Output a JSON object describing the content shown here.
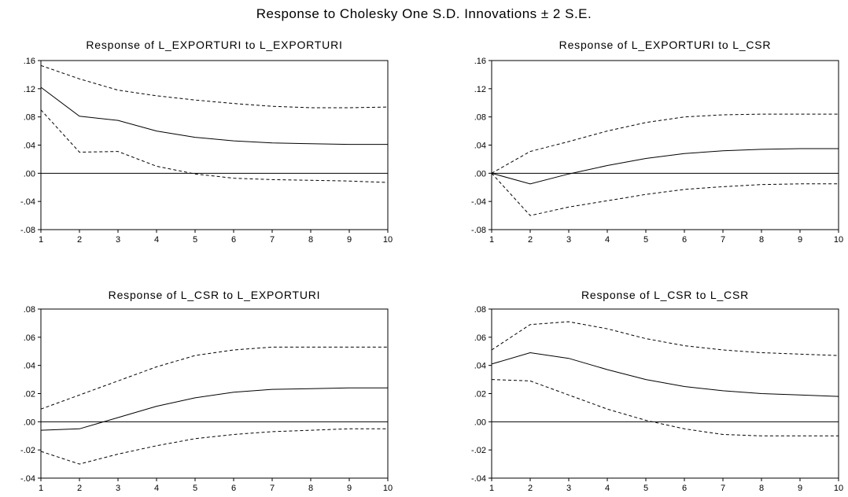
{
  "figure": {
    "title": "Response to Cholesky One S.D. Innovations ± 2 S.E."
  },
  "chart_data": [
    {
      "type": "line",
      "title": "Response of L_EXPORTURI to L_EXPORTURI",
      "x": [
        1,
        2,
        3,
        4,
        5,
        6,
        7,
        8,
        9,
        10
      ],
      "xticks": [
        "1",
        "2",
        "3",
        "4",
        "5",
        "6",
        "7",
        "8",
        "9",
        "10"
      ],
      "ylim": [
        -0.08,
        0.16
      ],
      "yticks": [
        ".16",
        ".12",
        ".08",
        ".04",
        ".00",
        "-.04",
        "-.08"
      ],
      "ytick_values": [
        0.16,
        0.12,
        0.08,
        0.04,
        0.0,
        -0.04,
        -0.08
      ],
      "series": [
        {
          "role": "response",
          "style": "solid",
          "values": [
            0.122,
            0.081,
            0.075,
            0.06,
            0.051,
            0.046,
            0.043,
            0.042,
            0.041,
            0.041
          ]
        },
        {
          "role": "upper_band",
          "style": "dashed",
          "values": [
            0.153,
            0.134,
            0.118,
            0.11,
            0.104,
            0.099,
            0.095,
            0.093,
            0.093,
            0.094
          ]
        },
        {
          "role": "lower_band",
          "style": "dashed",
          "values": [
            0.09,
            0.03,
            0.031,
            0.01,
            -0.001,
            -0.007,
            -0.009,
            -0.01,
            -0.011,
            -0.013
          ]
        }
      ]
    },
    {
      "type": "line",
      "title": "Response of L_EXPORTURI to L_CSR",
      "x": [
        1,
        2,
        3,
        4,
        5,
        6,
        7,
        8,
        9,
        10
      ],
      "xticks": [
        "1",
        "2",
        "3",
        "4",
        "5",
        "6",
        "7",
        "8",
        "9",
        "10"
      ],
      "ylim": [
        -0.08,
        0.16
      ],
      "yticks": [
        ".16",
        ".12",
        ".08",
        ".04",
        ".00",
        "-.04",
        "-.08"
      ],
      "ytick_values": [
        0.16,
        0.12,
        0.08,
        0.04,
        0.0,
        -0.04,
        -0.08
      ],
      "series": [
        {
          "role": "response",
          "style": "solid",
          "values": [
            0.0,
            -0.015,
            -0.001,
            0.011,
            0.021,
            0.028,
            0.032,
            0.034,
            0.035,
            0.035
          ]
        },
        {
          "role": "upper_band",
          "style": "dashed",
          "values": [
            0.0,
            0.031,
            0.045,
            0.06,
            0.072,
            0.08,
            0.083,
            0.084,
            0.084,
            0.084
          ]
        },
        {
          "role": "lower_band",
          "style": "dashed",
          "values": [
            0.0,
            -0.06,
            -0.048,
            -0.039,
            -0.03,
            -0.023,
            -0.019,
            -0.016,
            -0.015,
            -0.015
          ]
        }
      ]
    },
    {
      "type": "line",
      "title": "Response of L_CSR to L_EXPORTURI",
      "x": [
        1,
        2,
        3,
        4,
        5,
        6,
        7,
        8,
        9,
        10
      ],
      "xticks": [
        "1",
        "2",
        "3",
        "4",
        "5",
        "6",
        "7",
        "8",
        "9",
        "10"
      ],
      "ylim": [
        -0.04,
        0.08
      ],
      "yticks": [
        ".08",
        ".06",
        ".04",
        ".02",
        ".00",
        "-.02",
        "-.04"
      ],
      "ytick_values": [
        0.08,
        0.06,
        0.04,
        0.02,
        0.0,
        -0.02,
        -0.04
      ],
      "series": [
        {
          "role": "response",
          "style": "solid",
          "values": [
            -0.006,
            -0.005,
            0.003,
            0.011,
            0.017,
            0.021,
            0.023,
            0.0235,
            0.024,
            0.024
          ]
        },
        {
          "role": "upper_band",
          "style": "dashed",
          "values": [
            0.009,
            0.019,
            0.029,
            0.039,
            0.047,
            0.051,
            0.053,
            0.053,
            0.053,
            0.053
          ]
        },
        {
          "role": "lower_band",
          "style": "dashed",
          "values": [
            -0.021,
            -0.03,
            -0.023,
            -0.017,
            -0.012,
            -0.009,
            -0.007,
            -0.006,
            -0.005,
            -0.005
          ]
        }
      ]
    },
    {
      "type": "line",
      "title": "Response of L_CSR to L_CSR",
      "x": [
        1,
        2,
        3,
        4,
        5,
        6,
        7,
        8,
        9,
        10
      ],
      "xticks": [
        "1",
        "2",
        "3",
        "4",
        "5",
        "6",
        "7",
        "8",
        "9",
        "10"
      ],
      "ylim": [
        -0.04,
        0.08
      ],
      "yticks": [
        ".08",
        ".06",
        ".04",
        ".02",
        ".00",
        "-.02",
        "-.04"
      ],
      "ytick_values": [
        0.08,
        0.06,
        0.04,
        0.02,
        0.0,
        -0.02,
        -0.04
      ],
      "series": [
        {
          "role": "response",
          "style": "solid",
          "values": [
            0.041,
            0.049,
            0.045,
            0.037,
            0.03,
            0.025,
            0.022,
            0.02,
            0.019,
            0.018
          ]
        },
        {
          "role": "upper_band",
          "style": "dashed",
          "values": [
            0.051,
            0.069,
            0.071,
            0.066,
            0.059,
            0.054,
            0.051,
            0.049,
            0.048,
            0.047
          ]
        },
        {
          "role": "lower_band",
          "style": "dashed",
          "values": [
            0.03,
            0.029,
            0.019,
            0.009,
            0.001,
            -0.005,
            -0.009,
            -0.01,
            -0.01,
            -0.01
          ]
        }
      ]
    }
  ]
}
